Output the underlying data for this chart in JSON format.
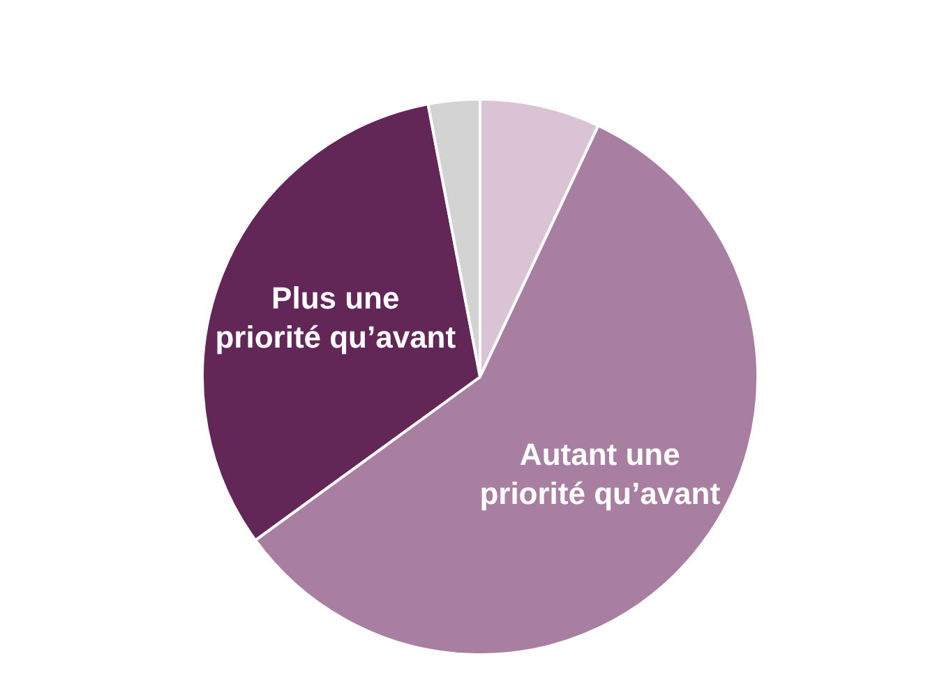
{
  "chart_data": {
    "type": "pie",
    "categories": [
      null,
      "Autant une priorité qu’avant",
      "Plus une priorité qu’avant",
      null
    ],
    "values": [
      7,
      58,
      32,
      3
    ],
    "colors": [
      "#d9c3d5",
      "#a87fa1",
      "#622657",
      "#d3d3d3"
    ],
    "legend": false
  }
}
